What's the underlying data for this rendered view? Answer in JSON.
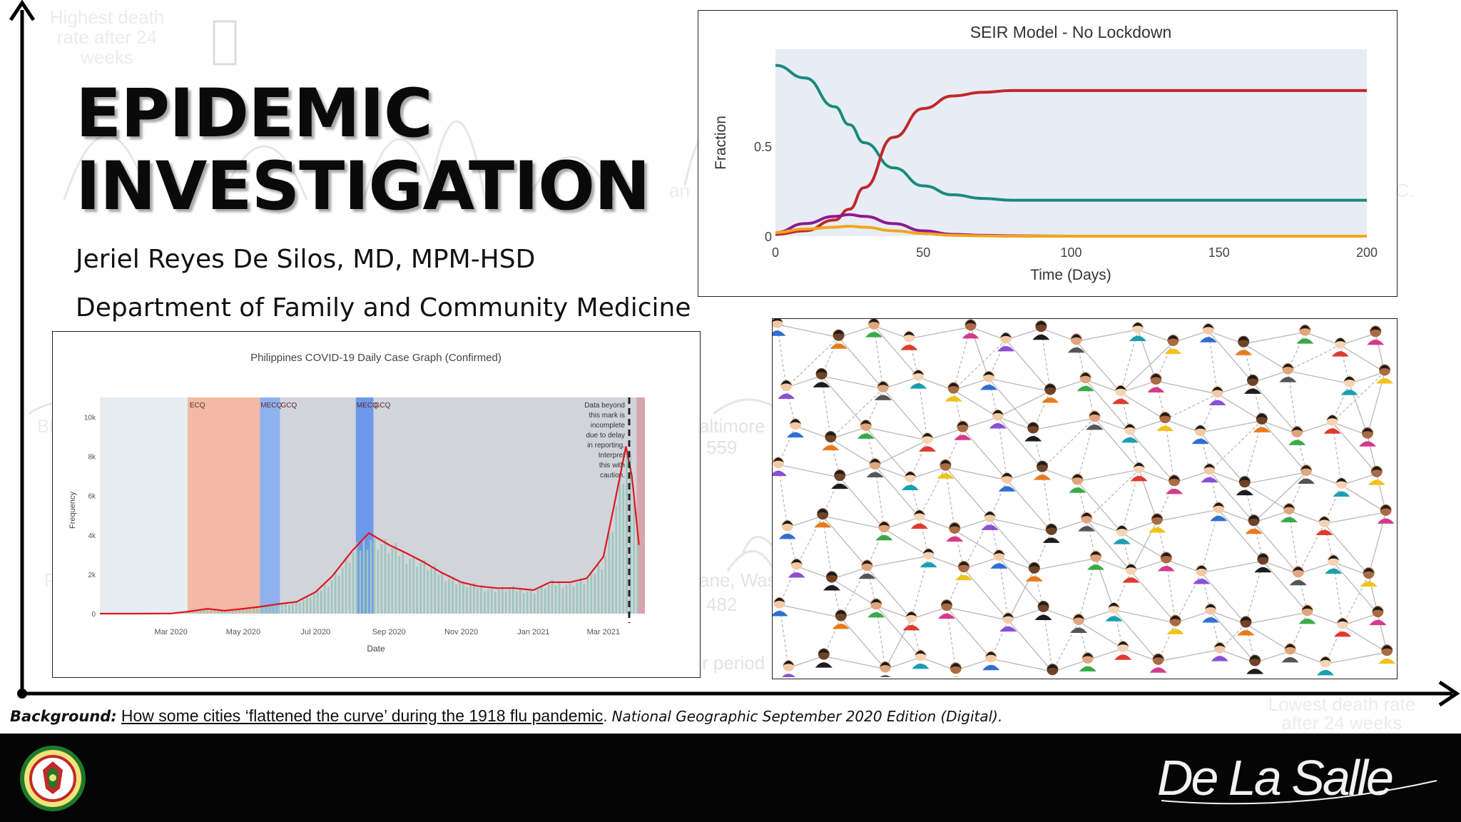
{
  "slide": {
    "title_line1": "EPIDEMIC",
    "title_line2": "INVESTIGATION",
    "author": "Jeriel Reyes De Silos, MD, MPM-HSD",
    "department": "Department of Family and Community Medicine"
  },
  "background_ghost_text": {
    "top_left": "Highest death rate after 24 weeks",
    "fragment_an": "an",
    "fragment_c": "C.",
    "fragment_bl": "Bl",
    "fragment_altimore": "altimore",
    "fragment_559": "559",
    "fragment_p": "P",
    "fragment_ane_was": "ane, Was",
    "fragment_482": "482",
    "fragment_r_period": "r period",
    "bottom_right": "Lowest death rate after 24 weeks"
  },
  "seir_chart": {
    "chart_data": {
      "type": "line",
      "title": "SEIR Model - No Lockdown",
      "xlabel": "Time (Days)",
      "ylabel": "Fraction",
      "xlim": [
        0,
        200
      ],
      "ylim": [
        0,
        1
      ],
      "x_ticks": [
        "0",
        "50",
        "100",
        "150",
        "200"
      ],
      "y_ticks": [
        "0",
        "0.5"
      ],
      "grid": false,
      "x": [
        0,
        10,
        20,
        25,
        30,
        40,
        50,
        60,
        70,
        80,
        100,
        150,
        200
      ],
      "series": [
        {
          "color": "#1a8a7e",
          "values": [
            0.95,
            0.88,
            0.72,
            0.62,
            0.52,
            0.38,
            0.28,
            0.23,
            0.21,
            0.2,
            0.2,
            0.2,
            0.2
          ]
        },
        {
          "color": "#c0282c",
          "values": [
            0.01,
            0.03,
            0.09,
            0.15,
            0.27,
            0.55,
            0.71,
            0.78,
            0.8,
            0.81,
            0.81,
            0.81,
            0.81
          ]
        },
        {
          "color": "#8e1a92",
          "values": [
            0.02,
            0.07,
            0.11,
            0.12,
            0.11,
            0.07,
            0.03,
            0.01,
            0.005,
            0.002,
            0.0,
            0.0,
            0.0
          ]
        },
        {
          "color": "#f2a51a",
          "values": [
            0.02,
            0.04,
            0.05,
            0.055,
            0.05,
            0.03,
            0.015,
            0.005,
            0.002,
            0.0,
            0.0,
            0.0,
            0.0
          ]
        }
      ]
    }
  },
  "covid_chart": {
    "chart_data": {
      "type": "bar",
      "title": "Philippines COVID-19 Daily Case Graph (Confirmed)",
      "xlabel": "Date",
      "ylabel": "Frequency",
      "ylim": [
        0,
        11000
      ],
      "x_ticks": [
        "Mar 2020",
        "May 2020",
        "Jul 2020",
        "Sep 2020",
        "Nov 2020",
        "Jan 2021",
        "Mar 2021"
      ],
      "y_ticks": [
        "0",
        "2k",
        "4k",
        "6k",
        "8k",
        "10k"
      ],
      "annotations": [
        "ECQ",
        "MECQ",
        "GCQ",
        "MECQ",
        "GCQ"
      ],
      "note": "Data beyond this mark is incomplete due to delay in reporting. Interpret this with caution.",
      "x_dates": [
        "2020-01-01",
        "2020-02-01",
        "2020-03-01",
        "2020-03-15",
        "2020-04-01",
        "2020-04-15",
        "2020-05-01",
        "2020-05-15",
        "2020-06-01",
        "2020-06-15",
        "2020-07-01",
        "2020-07-15",
        "2020-08-01",
        "2020-08-15",
        "2020-09-01",
        "2020-09-15",
        "2020-10-01",
        "2020-10-15",
        "2020-11-01",
        "2020-11-15",
        "2020-12-01",
        "2020-12-15",
        "2021-01-01",
        "2021-01-15",
        "2021-02-01",
        "2021-02-15",
        "2021-03-01",
        "2021-03-10",
        "2021-03-20",
        "2021-03-25",
        "2021-03-31"
      ],
      "series": [
        {
          "type": "line",
          "color": "#e0161e",
          "values": [
            0,
            0,
            10,
            100,
            250,
            150,
            250,
            350,
            500,
            600,
            1100,
            1900,
            3200,
            4100,
            3500,
            3100,
            2600,
            2100,
            1600,
            1400,
            1300,
            1300,
            1200,
            1600,
            1600,
            1800,
            2900,
            5500,
            8500,
            7000,
            3500
          ]
        }
      ],
      "bands": [
        {
          "label": "ECQ",
          "start": "2020-03-15",
          "end": "2020-05-15",
          "color": "#f3b9a4"
        },
        {
          "label": "MECQ",
          "start": "2020-05-15",
          "end": "2020-06-01",
          "color": "#8fb1ee"
        },
        {
          "label": "GCQ",
          "start": "2020-06-01",
          "end": "2020-08-04",
          "color": "#d2d4dc"
        },
        {
          "label": "MECQ",
          "start": "2020-08-04",
          "end": "2020-08-19",
          "color": "#6e98ea"
        },
        {
          "label": "GCQ",
          "start": "2020-08-19",
          "end": "2021-03-29",
          "color": "#d2d4dc"
        }
      ]
    }
  },
  "network_image": {
    "description_icon": "people-network-illustration"
  },
  "caption": {
    "label": "Background:",
    "link_text": "How some cities ‘flattened the curve’ during the 1918 flu pandemic",
    "after_link": ".",
    "source": "National Geographic September 2020 Edition (Digital)",
    "end": "."
  },
  "footer": {
    "logo_icon": "dlshsi-seal-icon",
    "brand_signature": "De La Salle"
  },
  "colors": {
    "seir_bg": "#e8edf5",
    "footer_bg": "#050505",
    "axis_black": "#000000"
  }
}
